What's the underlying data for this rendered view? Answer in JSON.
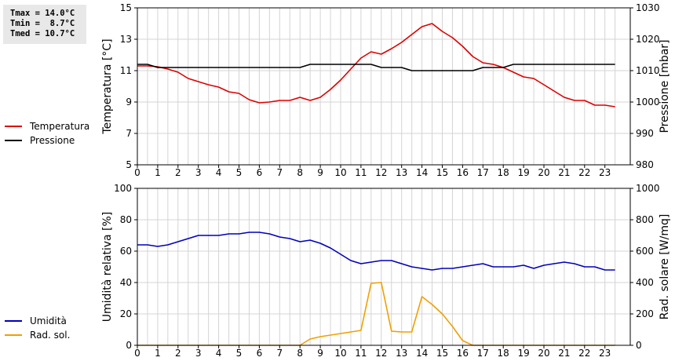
{
  "stats": {
    "tmax": "Tmax = 14.0°C",
    "tmin": "Tmin =  8.7°C",
    "tmed": "Tmed = 10.7°C"
  },
  "legend_top": [
    {
      "label": "Temperatura",
      "color": "#dd0000"
    },
    {
      "label": "Pressione",
      "color": "#000000"
    }
  ],
  "legend_bottom": [
    {
      "label": "Umidità",
      "color": "#0000bb"
    },
    {
      "label": "Rad. sol.",
      "color": "#f0a000"
    }
  ],
  "chart_data": [
    {
      "type": "line",
      "xlabel": "",
      "xlim": [
        0,
        24
      ],
      "x_ticks": [
        0,
        1,
        2,
        3,
        4,
        5,
        6,
        7,
        8,
        9,
        10,
        11,
        12,
        13,
        14,
        15,
        16,
        17,
        18,
        19,
        20,
        21,
        22,
        23
      ],
      "ylabel": "Temperatura [°C]",
      "ylim": [
        5,
        15
      ],
      "y_ticks": [
        5,
        7,
        9,
        11,
        13,
        15
      ],
      "y2label": "Pressione [mbar]",
      "y2lim": [
        980,
        1030
      ],
      "y2_ticks": [
        980,
        990,
        1000,
        1010,
        1020,
        1030
      ],
      "grid": true,
      "series": [
        {
          "name": "Temperatura",
          "axis": "left",
          "color": "#dd0000",
          "points": [
            [
              0,
              11.3
            ],
            [
              0.5,
              11.3
            ],
            [
              1,
              11.25
            ],
            [
              1.5,
              11.1
            ],
            [
              2,
              10.9
            ],
            [
              2.5,
              10.5
            ],
            [
              3,
              10.3
            ],
            [
              3.5,
              10.1
            ],
            [
              4,
              9.95
            ],
            [
              4.5,
              9.65
            ],
            [
              5,
              9.55
            ],
            [
              5.5,
              9.15
            ],
            [
              6,
              8.95
            ],
            [
              6.5,
              9.0
            ],
            [
              7,
              9.1
            ],
            [
              7.5,
              9.1
            ],
            [
              8,
              9.3
            ],
            [
              8.5,
              9.1
            ],
            [
              9,
              9.3
            ],
            [
              9.5,
              9.8
            ],
            [
              10,
              10.4
            ],
            [
              10.5,
              11.1
            ],
            [
              11,
              11.8
            ],
            [
              11.5,
              12.2
            ],
            [
              12,
              12.05
            ],
            [
              12.5,
              12.4
            ],
            [
              13,
              12.8
            ],
            [
              13.5,
              13.3
            ],
            [
              14,
              13.8
            ],
            [
              14.5,
              14.0
            ],
            [
              15,
              13.5
            ],
            [
              15.5,
              13.1
            ],
            [
              16,
              12.55
            ],
            [
              16.5,
              11.9
            ],
            [
              17,
              11.5
            ],
            [
              17.5,
              11.4
            ],
            [
              18,
              11.2
            ],
            [
              18.5,
              10.9
            ],
            [
              19,
              10.6
            ],
            [
              19.5,
              10.5
            ],
            [
              20,
              10.1
            ],
            [
              20.5,
              9.7
            ],
            [
              21,
              9.3
            ],
            [
              21.5,
              9.1
            ],
            [
              22,
              9.1
            ],
            [
              22.5,
              8.8
            ],
            [
              23,
              8.8
            ],
            [
              23.5,
              8.7
            ]
          ]
        },
        {
          "name": "Pressione",
          "axis": "right",
          "color": "#000000",
          "points": [
            [
              0,
              1012
            ],
            [
              0.5,
              1012
            ],
            [
              1,
              1011
            ],
            [
              2,
              1011
            ],
            [
              3,
              1011
            ],
            [
              4,
              1011
            ],
            [
              5,
              1011
            ],
            [
              6,
              1011
            ],
            [
              7,
              1011
            ],
            [
              8,
              1011
            ],
            [
              8.5,
              1012
            ],
            [
              9,
              1012
            ],
            [
              10,
              1012
            ],
            [
              11,
              1012
            ],
            [
              11.5,
              1012
            ],
            [
              12,
              1011
            ],
            [
              13,
              1011
            ],
            [
              13.5,
              1010
            ],
            [
              14,
              1010
            ],
            [
              15,
              1010
            ],
            [
              16,
              1010
            ],
            [
              16.5,
              1010
            ],
            [
              17,
              1011
            ],
            [
              18,
              1011
            ],
            [
              18.5,
              1012
            ],
            [
              19,
              1012
            ],
            [
              20,
              1012
            ],
            [
              21,
              1012
            ],
            [
              22,
              1012
            ],
            [
              23,
              1012
            ],
            [
              23.5,
              1012
            ]
          ]
        }
      ]
    },
    {
      "type": "line",
      "xlabel": "",
      "xlim": [
        0,
        24
      ],
      "x_ticks": [
        0,
        1,
        2,
        3,
        4,
        5,
        6,
        7,
        8,
        9,
        10,
        11,
        12,
        13,
        14,
        15,
        16,
        17,
        18,
        19,
        20,
        21,
        22,
        23
      ],
      "ylabel": "Umidità relativa [%]",
      "ylim": [
        0,
        100
      ],
      "y_ticks": [
        0,
        20,
        40,
        60,
        80,
        100
      ],
      "y2label": "Rad. solare [W/mq]",
      "y2lim": [
        0,
        1000
      ],
      "y2_ticks": [
        0,
        200,
        400,
        600,
        800,
        1000
      ],
      "grid": true,
      "series": [
        {
          "name": "Umidità",
          "axis": "left",
          "color": "#0000bb",
          "points": [
            [
              0,
              64
            ],
            [
              0.5,
              64
            ],
            [
              1,
              63
            ],
            [
              1.5,
              64
            ],
            [
              2,
              66
            ],
            [
              2.5,
              68
            ],
            [
              3,
              70
            ],
            [
              3.5,
              70
            ],
            [
              4,
              70
            ],
            [
              4.5,
              71
            ],
            [
              5,
              71
            ],
            [
              5.5,
              72
            ],
            [
              6,
              72
            ],
            [
              6.5,
              71
            ],
            [
              7,
              69
            ],
            [
              7.5,
              68
            ],
            [
              8,
              66
            ],
            [
              8.5,
              67
            ],
            [
              9,
              65
            ],
            [
              9.5,
              62
            ],
            [
              10,
              58
            ],
            [
              10.5,
              54
            ],
            [
              11,
              52
            ],
            [
              11.5,
              53
            ],
            [
              12,
              54
            ],
            [
              12.5,
              54
            ],
            [
              13,
              52
            ],
            [
              13.5,
              50
            ],
            [
              14,
              49
            ],
            [
              14.5,
              48
            ],
            [
              15,
              49
            ],
            [
              15.5,
              49
            ],
            [
              16,
              50
            ],
            [
              16.5,
              51
            ],
            [
              17,
              52
            ],
            [
              17.5,
              50
            ],
            [
              18,
              50
            ],
            [
              18.5,
              50
            ],
            [
              19,
              51
            ],
            [
              19.5,
              49
            ],
            [
              20,
              51
            ],
            [
              20.5,
              52
            ],
            [
              21,
              53
            ],
            [
              21.5,
              52
            ],
            [
              22,
              50
            ],
            [
              22.5,
              50
            ],
            [
              23,
              48
            ],
            [
              23.5,
              48
            ]
          ]
        },
        {
          "name": "Rad. sol.",
          "axis": "right",
          "color": "#f0a000",
          "points": [
            [
              0,
              0
            ],
            [
              1,
              0
            ],
            [
              2,
              0
            ],
            [
              3,
              0
            ],
            [
              4,
              0
            ],
            [
              5,
              0
            ],
            [
              6,
              0
            ],
            [
              7,
              0
            ],
            [
              8,
              0
            ],
            [
              8.5,
              40
            ],
            [
              9,
              55
            ],
            [
              9.5,
              65
            ],
            [
              10,
              75
            ],
            [
              10.5,
              85
            ],
            [
              11,
              95
            ],
            [
              11.5,
              395
            ],
            [
              12,
              400
            ],
            [
              12.5,
              90
            ],
            [
              13,
              85
            ],
            [
              13.5,
              85
            ],
            [
              14,
              310
            ],
            [
              14.5,
              260
            ],
            [
              15,
              200
            ],
            [
              15.5,
              120
            ],
            [
              16,
              30
            ],
            [
              16.5,
              0
            ],
            [
              17,
              0
            ],
            [
              18,
              0
            ],
            [
              19,
              0
            ],
            [
              20,
              0
            ],
            [
              21,
              0
            ],
            [
              22,
              0
            ],
            [
              23,
              0
            ],
            [
              23.5,
              0
            ]
          ]
        }
      ]
    }
  ]
}
